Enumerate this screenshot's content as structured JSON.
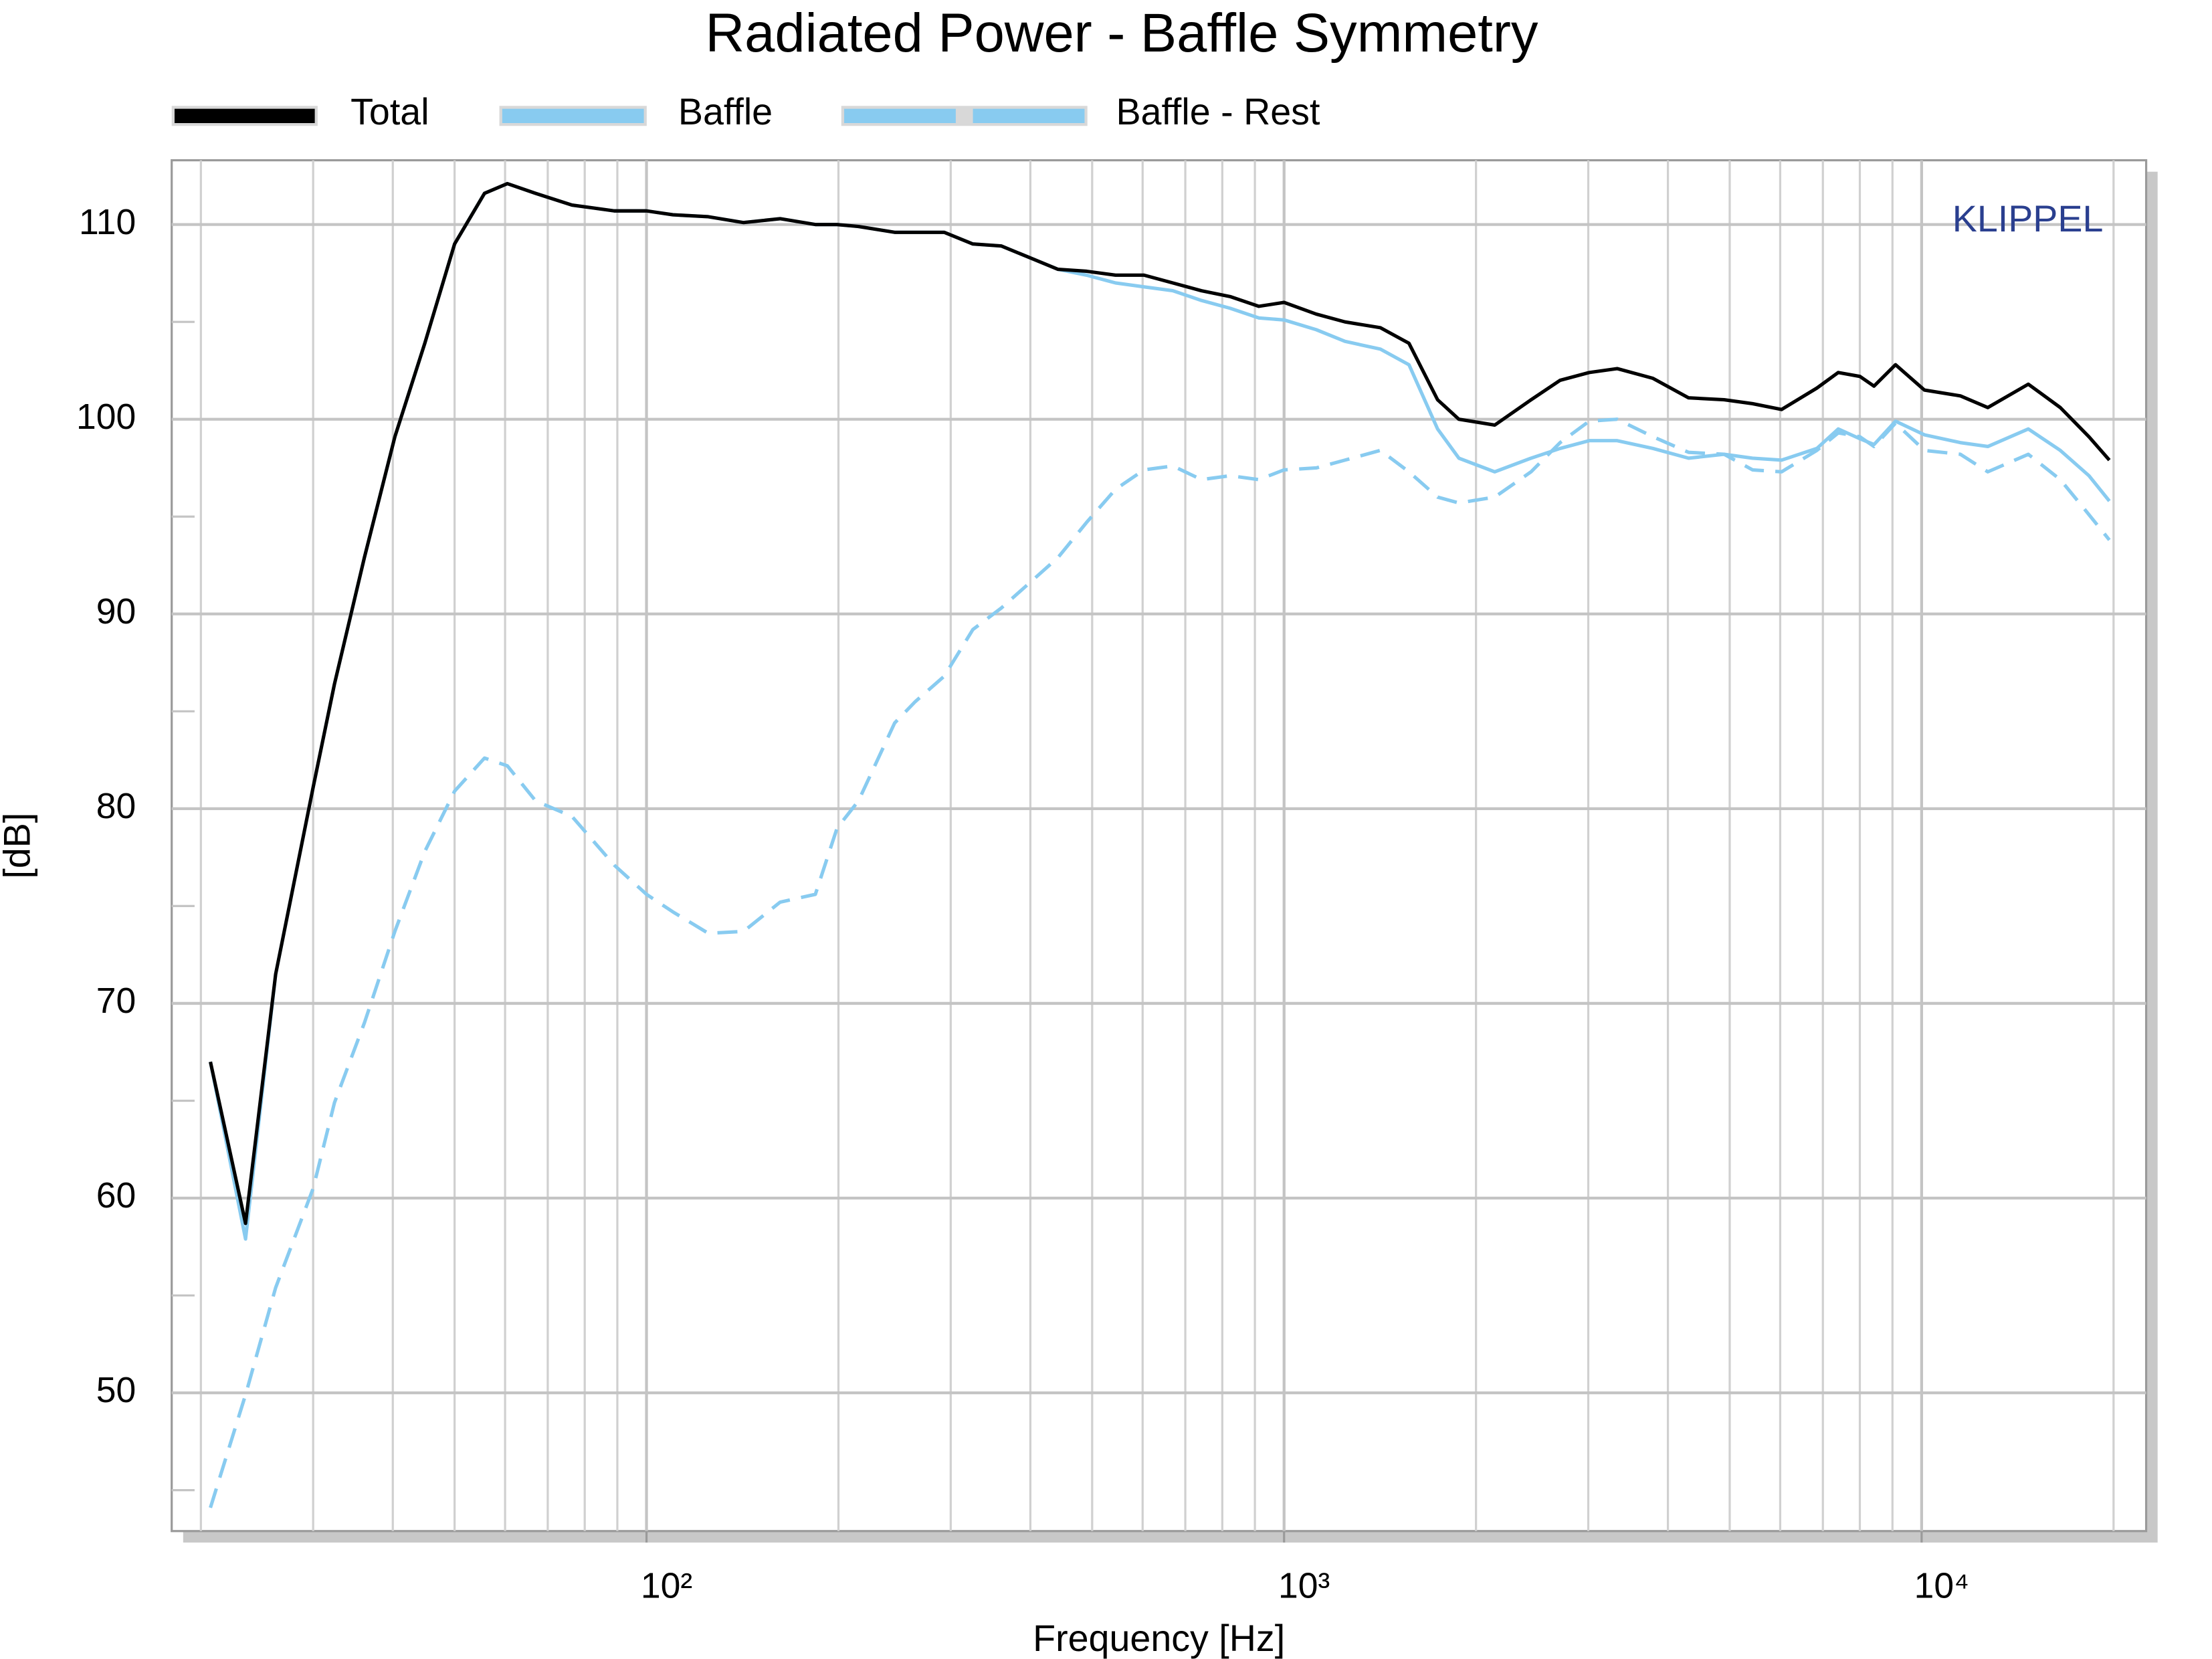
{
  "chart_data": {
    "type": "line",
    "title": "Radiated Power - Baffle Symmetry",
    "watermark": "KLIPPEL",
    "xlabel": "Frequency [Hz]",
    "ylabel": "[dB]",
    "xscale": "log",
    "grid": true,
    "xlim": [
      18,
      22500
    ],
    "ylim": [
      42.9,
      113.3
    ],
    "xticks": [
      {
        "value": 100,
        "label": "10²"
      },
      {
        "value": 1000,
        "label": "10³"
      },
      {
        "value": 10000,
        "label": "10⁴"
      }
    ],
    "xminorticks": [
      20,
      30,
      40,
      50,
      60,
      70,
      80,
      90,
      200,
      300,
      400,
      500,
      600,
      700,
      800,
      900,
      2000,
      3000,
      4000,
      5000,
      6000,
      7000,
      8000,
      9000,
      20000
    ],
    "yticks": [
      50,
      60,
      70,
      80,
      90,
      100,
      110
    ],
    "yminorticks": [
      45,
      55,
      65,
      75,
      85,
      95,
      105
    ],
    "x": [
      20.7,
      23.5,
      26.2,
      30,
      32.4,
      36.1,
      40.3,
      44.9,
      50,
      55.7,
      60.5,
      67,
      76.4,
      89,
      100,
      110,
      125,
      142,
      162,
      184,
      199,
      215,
      245,
      264,
      293,
      325,
      360,
      399,
      442,
      490,
      544,
      603,
      669,
      742,
      823,
      913,
      1000,
      1123,
      1246,
      1416,
      1570,
      1741,
      1880,
      2140,
      2440,
      2710,
      3010,
      3330,
      3790,
      4310,
      4900,
      5430,
      6030,
      6850,
      7400,
      8000,
      8420,
      9100,
      10100,
      11500,
      12700,
      14700,
      16500,
      18300,
      19700
    ],
    "series": [
      {
        "name": "Total",
        "color": "#000000",
        "style": "solid",
        "values": [
          67.0,
          58.7,
          71.5,
          81.1,
          86.4,
          92.9,
          99.1,
          103.9,
          109.0,
          111.6,
          112.1,
          111.6,
          111.0,
          110.7,
          110.7,
          110.5,
          110.4,
          110.1,
          110.3,
          110.0,
          110.0,
          109.9,
          109.6,
          109.6,
          109.6,
          109.0,
          108.9,
          108.3,
          107.7,
          107.6,
          107.4,
          107.4,
          107.0,
          106.6,
          106.3,
          105.8,
          106.0,
          105.4,
          105.0,
          104.7,
          103.9,
          101.0,
          100.0,
          99.7,
          101.0,
          102.0,
          102.4,
          102.6,
          102.1,
          101.1,
          101.0,
          100.8,
          100.5,
          101.6,
          102.4,
          102.2,
          101.7,
          102.8,
          101.5,
          101.2,
          100.6,
          101.8,
          100.6,
          99.1,
          97.9
        ]
      },
      {
        "name": "Baffle",
        "color": "#88cbf0",
        "style": "solid",
        "values": [
          67.0,
          57.9,
          71.5,
          81.1,
          86.4,
          92.9,
          99.1,
          103.9,
          109.0,
          111.6,
          112.1,
          111.6,
          111.0,
          110.7,
          110.7,
          110.5,
          110.4,
          110.1,
          110.3,
          110.0,
          110.0,
          109.9,
          109.6,
          109.6,
          109.6,
          109.0,
          108.9,
          108.3,
          107.7,
          107.4,
          107.0,
          106.8,
          106.6,
          106.1,
          105.7,
          105.2,
          105.1,
          104.6,
          104.0,
          103.6,
          102.8,
          99.5,
          98.0,
          97.3,
          98.0,
          98.5,
          98.9,
          98.9,
          98.5,
          98.0,
          98.2,
          98.0,
          97.9,
          98.5,
          99.5,
          99.0,
          98.7,
          99.9,
          99.2,
          98.8,
          98.6,
          99.5,
          98.4,
          97.1,
          95.8
        ]
      },
      {
        "name": "Baffle - Rest",
        "color": "#88cbf0",
        "style": "dashed",
        "values": [
          44.1,
          49.9,
          55.4,
          60.5,
          64.9,
          69.0,
          73.7,
          77.8,
          80.9,
          82.6,
          82.2,
          80.4,
          79.6,
          77.1,
          75.6,
          74.7,
          73.6,
          73.7,
          75.2,
          75.6,
          79.0,
          80.4,
          84.4,
          85.5,
          86.8,
          89.2,
          90.3,
          91.6,
          92.9,
          94.7,
          96.4,
          97.4,
          97.6,
          96.9,
          97.1,
          96.9,
          97.4,
          97.5,
          97.9,
          98.4,
          97.3,
          96.0,
          95.7,
          96.0,
          97.3,
          98.8,
          99.9,
          100.0,
          99.1,
          98.3,
          98.2,
          97.4,
          97.3,
          98.4,
          99.3,
          99.1,
          98.6,
          99.8,
          98.4,
          98.2,
          97.3,
          98.2,
          96.9,
          95.1,
          93.8
        ]
      }
    ]
  }
}
